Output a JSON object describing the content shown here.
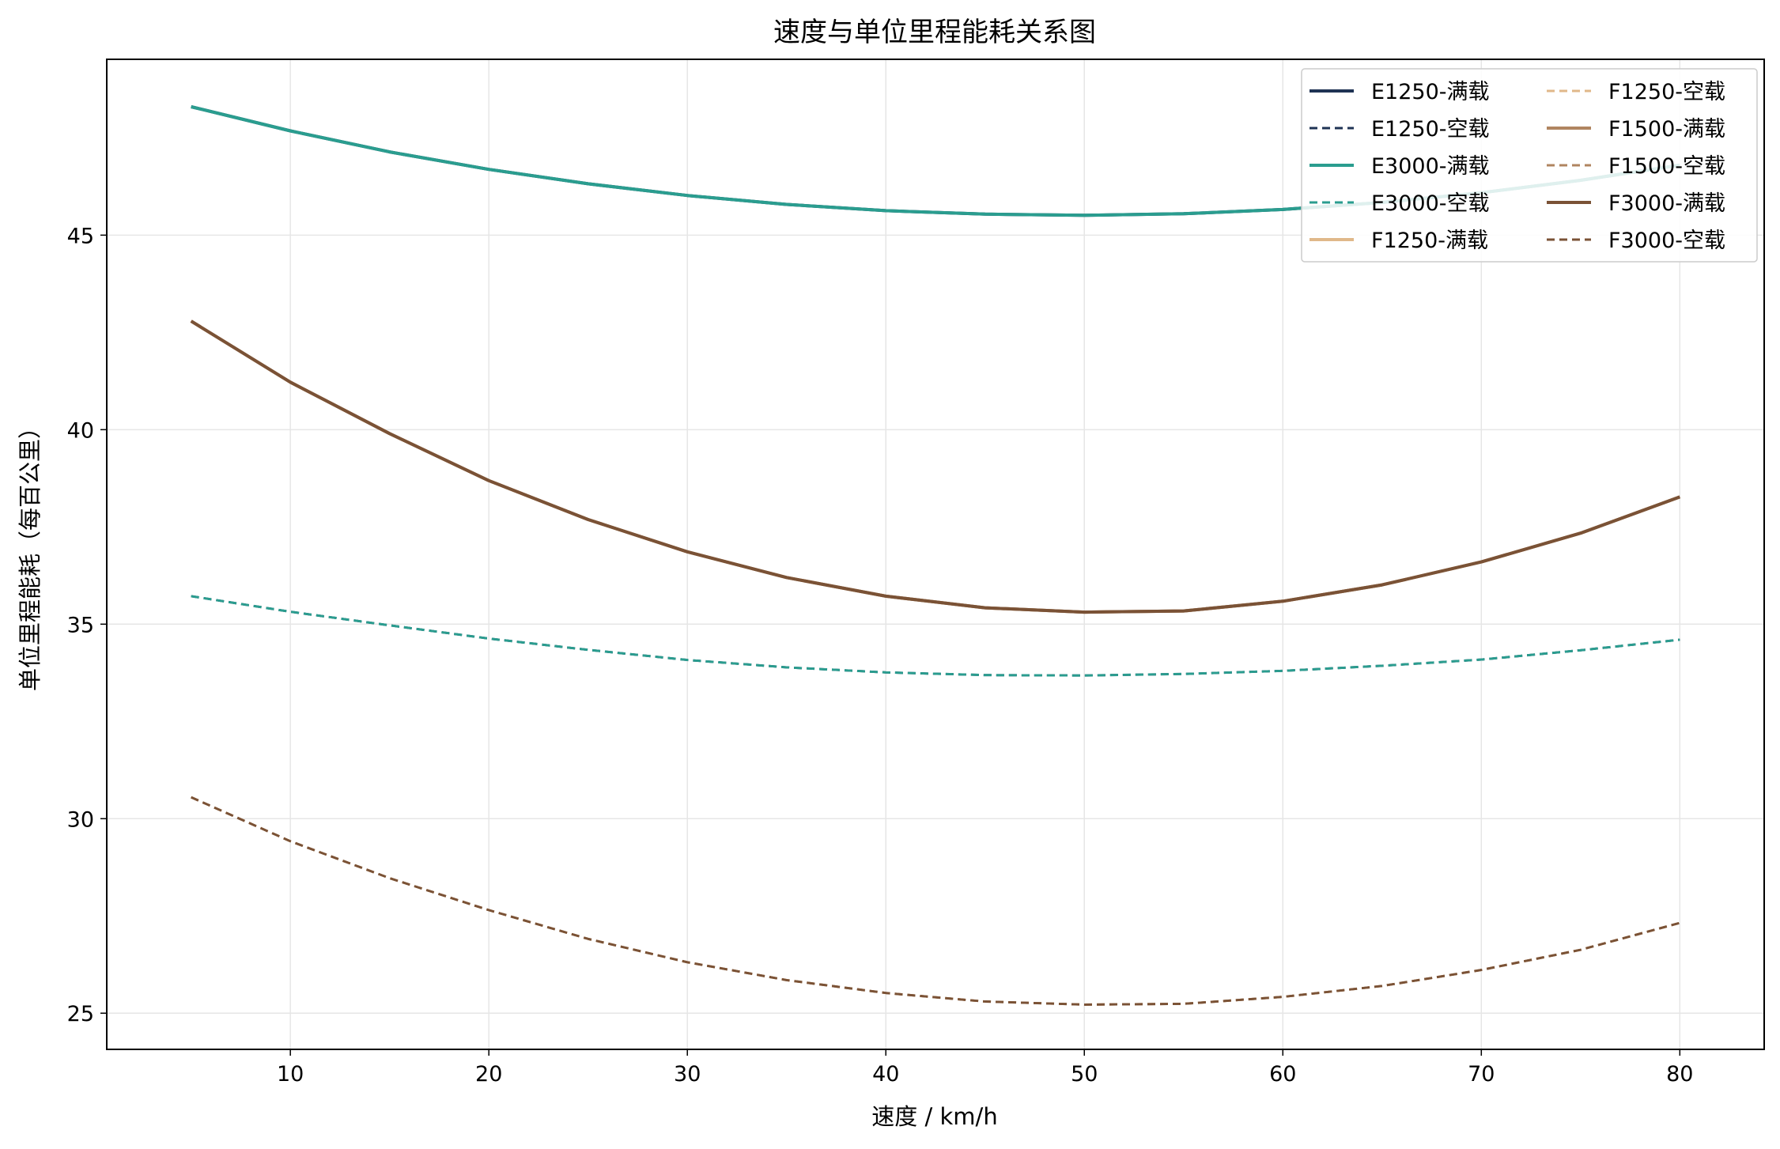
{
  "chart_data": {
    "type": "line",
    "title": "速度与单位里程能耗关系图",
    "xlabel": "速度 / km/h",
    "ylabel": "单位里程能耗（每百公里）",
    "xlim": [
      0.75,
      84.25
    ],
    "ylim": [
      24.07,
      49.52
    ],
    "xticks": [
      10,
      20,
      30,
      40,
      50,
      60,
      70,
      80
    ],
    "yticks": [
      25,
      30,
      35,
      40,
      45
    ],
    "grid": true,
    "legend_position": "top-right",
    "legend_columns": 2,
    "x": [
      5,
      10,
      15,
      20,
      25,
      30,
      35,
      40,
      45,
      50,
      55,
      60,
      65,
      70,
      75,
      80
    ],
    "series": [
      {
        "name": "E1250-满载",
        "color": "#1f3354",
        "style": "solid",
        "width": 2.5,
        "values": [
          48.3,
          47.68,
          47.14,
          46.69,
          46.32,
          46.02,
          45.79,
          45.63,
          45.54,
          45.51,
          45.55,
          45.66,
          45.84,
          46.09,
          46.41,
          46.8
        ]
      },
      {
        "name": "E1250-空载",
        "color": "#1f3354",
        "style": "dashed",
        "width": 1.8,
        "values": [
          35.72,
          35.32,
          34.97,
          34.63,
          34.34,
          34.08,
          33.89,
          33.76,
          33.69,
          33.68,
          33.72,
          33.8,
          33.93,
          34.09,
          34.33,
          34.6
        ]
      },
      {
        "name": "E3000-满载",
        "color": "#2a9d8f",
        "style": "solid",
        "width": 2.5,
        "values": [
          48.3,
          47.68,
          47.14,
          46.69,
          46.32,
          46.02,
          45.79,
          45.63,
          45.54,
          45.51,
          45.55,
          45.66,
          45.84,
          46.09,
          46.41,
          46.8
        ]
      },
      {
        "name": "E3000-空载",
        "color": "#2a9d8f",
        "style": "dashed",
        "width": 1.8,
        "values": [
          35.72,
          35.32,
          34.97,
          34.63,
          34.34,
          34.08,
          33.89,
          33.76,
          33.69,
          33.68,
          33.72,
          33.8,
          33.93,
          34.09,
          34.33,
          34.6
        ]
      },
      {
        "name": "F1250-满载",
        "color": "#e0b88a",
        "style": "solid",
        "width": 2.5,
        "values": [
          42.79,
          41.22,
          39.9,
          38.69,
          37.69,
          36.86,
          36.2,
          35.72,
          35.42,
          35.31,
          35.34,
          35.59,
          36.01,
          36.6,
          37.34,
          38.27
        ]
      },
      {
        "name": "F1250-空载",
        "color": "#e0b88a",
        "style": "dashed",
        "width": 1.8,
        "values": [
          30.55,
          29.42,
          28.47,
          27.65,
          26.91,
          26.31,
          25.85,
          25.52,
          25.3,
          25.22,
          25.24,
          25.42,
          25.7,
          26.11,
          26.63,
          27.32
        ]
      },
      {
        "name": "F1500-满载",
        "color": "#b08560",
        "style": "solid",
        "width": 2.5,
        "values": [
          42.79,
          41.22,
          39.9,
          38.69,
          37.69,
          36.86,
          36.2,
          35.72,
          35.42,
          35.31,
          35.34,
          35.59,
          36.01,
          36.6,
          37.34,
          38.27
        ]
      },
      {
        "name": "F1500-空载",
        "color": "#b08560",
        "style": "dashed",
        "width": 1.8,
        "values": [
          30.55,
          29.42,
          28.47,
          27.65,
          26.91,
          26.31,
          25.85,
          25.52,
          25.3,
          25.22,
          25.24,
          25.42,
          25.7,
          26.11,
          26.63,
          27.32
        ]
      },
      {
        "name": "F3000-满载",
        "color": "#7a5236",
        "style": "solid",
        "width": 2.5,
        "values": [
          42.79,
          41.22,
          39.9,
          38.69,
          37.69,
          36.86,
          36.2,
          35.72,
          35.42,
          35.31,
          35.34,
          35.59,
          36.01,
          36.6,
          37.34,
          38.27
        ]
      },
      {
        "name": "F3000-空载",
        "color": "#7a5236",
        "style": "dashed",
        "width": 1.8,
        "values": [
          30.55,
          29.42,
          28.47,
          27.65,
          26.91,
          26.31,
          25.85,
          25.52,
          25.3,
          25.22,
          25.24,
          25.42,
          25.7,
          26.11,
          26.63,
          27.32
        ]
      }
    ]
  }
}
